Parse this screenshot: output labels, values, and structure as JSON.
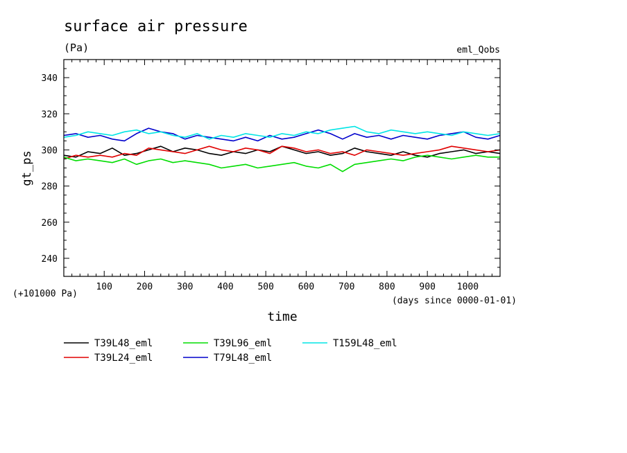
{
  "chart_data": {
    "type": "line",
    "title": "surface air pressure",
    "units": "(Pa)",
    "dataset_label": "eml_Qobs",
    "offset_label": "(+101000 Pa)",
    "xlabel": "time",
    "x_units": "(days since 0000-01-01)",
    "ylabel": "gt_ps",
    "xlim": [
      0,
      1080
    ],
    "ylim": [
      230,
      350
    ],
    "x_ticks": [
      100,
      200,
      300,
      400,
      500,
      600,
      700,
      800,
      900,
      1000
    ],
    "y_ticks": [
      240,
      260,
      280,
      300,
      320,
      340
    ],
    "x": [
      0,
      30,
      60,
      90,
      120,
      150,
      180,
      210,
      240,
      270,
      300,
      330,
      360,
      390,
      420,
      450,
      480,
      510,
      540,
      570,
      600,
      630,
      660,
      690,
      720,
      750,
      780,
      810,
      840,
      870,
      900,
      930,
      960,
      990,
      1020,
      1050,
      1080
    ],
    "series": [
      {
        "name": "T39L48_eml",
        "color": "#000000",
        "values": [
          297,
          296,
          299,
          298,
          301,
          297,
          298,
          300,
          302,
          299,
          301,
          300,
          298,
          297,
          299,
          298,
          300,
          299,
          302,
          300,
          298,
          299,
          297,
          298,
          301,
          299,
          298,
          297,
          299,
          297,
          296,
          298,
          299,
          300,
          298,
          299,
          298
        ]
      },
      {
        "name": "T39L24_eml",
        "color": "#e00000",
        "values": [
          295,
          297,
          296,
          297,
          296,
          298,
          297,
          301,
          300,
          299,
          298,
          300,
          302,
          300,
          299,
          301,
          300,
          298,
          302,
          301,
          299,
          300,
          298,
          299,
          297,
          300,
          299,
          298,
          297,
          298,
          299,
          300,
          302,
          301,
          300,
          299,
          300
        ]
      },
      {
        "name": "T39L96_eml",
        "color": "#00dd00",
        "values": [
          296,
          294,
          295,
          294,
          293,
          295,
          292,
          294,
          295,
          293,
          294,
          293,
          292,
          290,
          291,
          292,
          290,
          291,
          292,
          293,
          291,
          290,
          292,
          288,
          292,
          293,
          294,
          295,
          294,
          296,
          297,
          296,
          295,
          296,
          297,
          296,
          296
        ]
      },
      {
        "name": "T79L48_eml",
        "color": "#0000cc",
        "values": [
          308,
          309,
          307,
          308,
          306,
          305,
          309,
          312,
          310,
          309,
          306,
          308,
          307,
          306,
          305,
          307,
          305,
          308,
          306,
          307,
          309,
          311,
          309,
          306,
          309,
          307,
          308,
          306,
          308,
          307,
          306,
          308,
          309,
          310,
          307,
          306,
          308
        ]
      },
      {
        "name": "T159L48_eml",
        "color": "#00e5e5",
        "values": [
          307,
          308,
          310,
          309,
          308,
          310,
          311,
          309,
          310,
          308,
          307,
          309,
          306,
          308,
          307,
          309,
          308,
          307,
          309,
          308,
          310,
          309,
          311,
          312,
          313,
          310,
          309,
          311,
          310,
          309,
          310,
          309,
          308,
          310,
          309,
          308,
          309
        ]
      }
    ]
  }
}
